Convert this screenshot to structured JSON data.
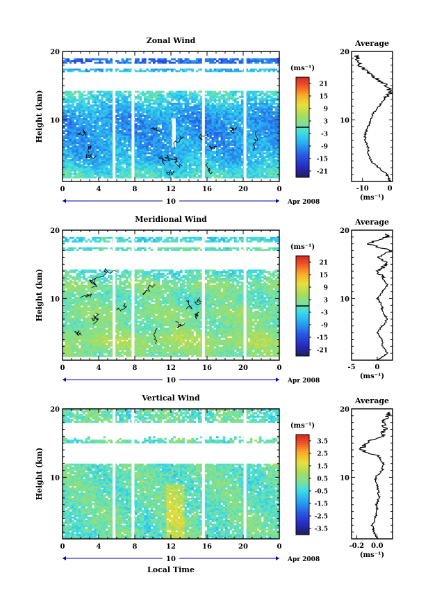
{
  "chart_data": [
    {
      "type": "heatmap",
      "title": "Zonal Wind",
      "ylabel": "Height (km)",
      "xlabel": "",
      "date_label": "Apr 2008",
      "day_label": "10",
      "xlim": [
        0,
        24
      ],
      "ylim": [
        1,
        20
      ],
      "xticks": [
        "0",
        "4",
        "8",
        "12",
        "16",
        "20",
        "0"
      ],
      "yticks": [
        "10",
        "20"
      ],
      "colorbar": {
        "unit": "(ms⁻¹)",
        "ticks": [
          "21",
          "15",
          "9",
          "3",
          "-3",
          "-9",
          "-15",
          "-21"
        ],
        "range": [
          -24,
          24
        ],
        "contour_level": 0
      },
      "gaps_hours": [
        5.7,
        7.8,
        15.6,
        20.2
      ],
      "height_profile_kmvalues": {
        "heights": [
          2,
          3,
          4,
          5,
          6,
          7,
          8,
          9,
          10,
          11,
          12,
          13,
          14,
          15,
          16,
          17,
          18
        ],
        "values": [
          -2,
          -4,
          -6,
          -7,
          -8,
          -8,
          -9,
          -9,
          -9,
          -8,
          -6,
          -4,
          -2,
          -1,
          null,
          -4,
          -12
        ]
      },
      "average": {
        "title": "Average",
        "xlabel": "(ms⁻¹)",
        "xlim": [
          -14,
          1
        ],
        "xticks": [
          "-10",
          "0"
        ],
        "heights": [
          1,
          2,
          3,
          4,
          5,
          6,
          7,
          8,
          9,
          10,
          11,
          12,
          13,
          14,
          15,
          16,
          17,
          18,
          19
        ],
        "values": [
          0,
          -1,
          -4,
          -7,
          -8,
          -8,
          -9,
          -9,
          -8,
          -7,
          -6,
          -4,
          -2,
          0,
          -1,
          -5,
          -8,
          -11,
          -12
        ]
      }
    },
    {
      "type": "heatmap",
      "title": "Meridional Wind",
      "ylabel": "Height (km)",
      "xlabel": "",
      "date_label": "Apr 2008",
      "day_label": "10",
      "xlim": [
        0,
        24
      ],
      "ylim": [
        1,
        20
      ],
      "xticks": [
        "0",
        "4",
        "8",
        "12",
        "16",
        "20",
        "0"
      ],
      "yticks": [
        "10",
        "20"
      ],
      "colorbar": {
        "unit": "(ms⁻¹)",
        "ticks": [
          "21",
          "15",
          "9",
          "3",
          "-3",
          "-9",
          "-15",
          "-21"
        ],
        "range": [
          -24,
          24
        ],
        "contour_level": 0
      },
      "gaps_hours": [
        5.7,
        7.8,
        15.6,
        20.2
      ],
      "height_profile_kmvalues": {
        "heights": [
          2,
          3,
          4,
          5,
          6,
          7,
          8,
          9,
          10,
          11,
          12,
          13,
          14,
          15,
          16,
          17,
          18
        ],
        "values": [
          2,
          4,
          5,
          3,
          1,
          2,
          3,
          1,
          0,
          1,
          3,
          0,
          -2,
          -1,
          null,
          0,
          -3
        ]
      },
      "average": {
        "title": "Average",
        "xlabel": "(ms⁻¹)",
        "xlim": [
          -5,
          3
        ],
        "xticks": [
          "-5",
          "0"
        ],
        "heights": [
          1,
          2,
          3,
          4,
          5,
          6,
          7,
          8,
          9,
          10,
          11,
          12,
          13,
          14,
          15,
          16,
          17,
          18,
          19
        ],
        "values": [
          0,
          2,
          1,
          1,
          0,
          1,
          2,
          1,
          1,
          0,
          1,
          2,
          1,
          0,
          2,
          0,
          3,
          -2,
          2
        ]
      }
    },
    {
      "type": "heatmap",
      "title": "Vertical Wind",
      "ylabel": "Height (km)",
      "xlabel": "Local Time",
      "date_label": "Apr 2008",
      "day_label": "10",
      "xlim": [
        0,
        24
      ],
      "ylim": [
        1,
        20
      ],
      "xticks": [
        "0",
        "4",
        "8",
        "12",
        "16",
        "20",
        "0"
      ],
      "yticks": [
        "10",
        "20"
      ],
      "colorbar": {
        "unit": "(ms⁻¹)",
        "ticks": [
          "3.5",
          "2.5",
          "1.5",
          "0.5",
          "-0.5",
          "-1.5",
          "-2.5",
          "-3.5"
        ],
        "range": [
          -4,
          4
        ],
        "contour_level": null
      },
      "gaps_hours": [
        5.7,
        7.8,
        15.6,
        20.2
      ],
      "height_profile_kmvalues": {
        "heights": [
          2,
          3,
          4,
          5,
          6,
          7,
          8,
          9,
          10,
          11,
          12,
          13,
          14,
          15,
          16,
          17,
          18
        ],
        "values": [
          0,
          0,
          0.1,
          0,
          0,
          0.1,
          0,
          0,
          0,
          0,
          0,
          null,
          null,
          0,
          0,
          null,
          0
        ]
      },
      "average": {
        "title": "Average",
        "xlabel": "(ms⁻¹)",
        "xlim": [
          -0.25,
          0.15
        ],
        "xticks": [
          "-0.2",
          "0.0"
        ],
        "heights": [
          1,
          2,
          3,
          4,
          5,
          6,
          7,
          8,
          9,
          10,
          11,
          12,
          13,
          14,
          15,
          16,
          17,
          18,
          19
        ],
        "values": [
          0,
          -0.03,
          -0.05,
          -0.02,
          0,
          -0.01,
          0.02,
          0.01,
          0,
          -0.02,
          0.05,
          0.06,
          0.02,
          -0.15,
          -0.12,
          0.05,
          0.08,
          0.06,
          0.1
        ]
      }
    }
  ]
}
